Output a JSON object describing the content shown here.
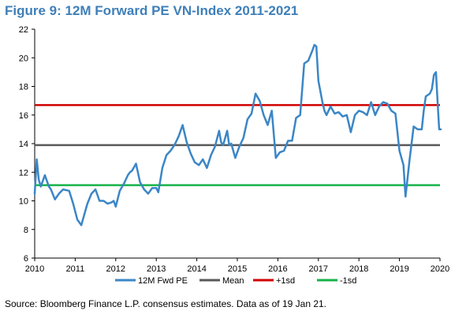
{
  "title": "Figure 9: 12M Forward PE VN-Index 2011-2021",
  "source": "Source: Bloomberg Finance L.P. consensus estimates. Data as of 19 Jan 21.",
  "colors": {
    "series": "#3b86c6",
    "mean": "#595959",
    "plus1sd": "#d00000",
    "minus1sd": "#17b24a",
    "title": "#3f7fb8"
  },
  "chart_data": {
    "type": "line",
    "title": "Figure 9: 12M Forward PE VN-Index 2011-2021",
    "xlabel": "",
    "ylabel": "",
    "xlim": [
      2010,
      2020
    ],
    "ylim": [
      6,
      22
    ],
    "x_ticks": [
      "2010",
      "2011",
      "2012",
      "2013",
      "2014",
      "2015",
      "2016",
      "2017",
      "2018",
      "2019",
      "2020"
    ],
    "y_ticks": [
      "6",
      "8",
      "10",
      "12",
      "14",
      "16",
      "18",
      "20",
      "22"
    ],
    "grid": false,
    "legend_position": "bottom",
    "series": [
      {
        "name": "12M Fwd PE",
        "x": [
          2010.0,
          2010.05,
          2010.1,
          2010.15,
          2010.25,
          2010.35,
          2010.4,
          2010.5,
          2010.6,
          2010.7,
          2010.85,
          2010.95,
          2011.05,
          2011.15,
          2011.3,
          2011.4,
          2011.5,
          2011.6,
          2011.7,
          2011.8,
          2011.9,
          2011.95,
          2012.0,
          2012.1,
          2012.2,
          2012.3,
          2012.35,
          2012.4,
          2012.5,
          2012.6,
          2012.7,
          2012.8,
          2012.9,
          2012.95,
          2013.0,
          2013.05,
          2013.15,
          2013.25,
          2013.35,
          2013.45,
          2013.55,
          2013.65,
          2013.75,
          2013.85,
          2013.95,
          2014.05,
          2014.15,
          2014.25,
          2014.35,
          2014.45,
          2014.55,
          2014.6,
          2014.65,
          2014.75,
          2014.8,
          2014.85,
          2014.95,
          2015.05,
          2015.15,
          2015.25,
          2015.35,
          2015.45,
          2015.55,
          2015.65,
          2015.75,
          2015.85,
          2015.95,
          2016.05,
          2016.15,
          2016.25,
          2016.35,
          2016.45,
          2016.55,
          2016.65,
          2016.75,
          2016.85,
          2016.9,
          2016.95,
          2017.0,
          2017.1,
          2017.15,
          2017.2,
          2017.3,
          2017.4,
          2017.5,
          2017.6,
          2017.7,
          2017.8,
          2017.9,
          2018.0,
          2018.1,
          2018.2,
          2018.3,
          2018.4,
          2018.5,
          2018.6,
          2018.7,
          2018.8,
          2018.9,
          2019.0,
          2019.05,
          2019.1,
          2019.15,
          2019.25,
          2019.35,
          2019.45,
          2019.55,
          2019.6,
          2019.65,
          2019.7,
          2019.75,
          2019.8,
          2019.85,
          2019.9,
          2019.95,
          2019.98,
          2020.02
        ],
        "values": [
          10.5,
          12.9,
          11.5,
          11.0,
          11.8,
          11.0,
          10.8,
          10.1,
          10.5,
          10.8,
          10.7,
          9.8,
          8.7,
          8.3,
          9.8,
          10.5,
          10.8,
          10.0,
          10.0,
          9.8,
          9.9,
          10.0,
          9.6,
          10.7,
          11.2,
          11.8,
          12.0,
          12.1,
          12.6,
          11.3,
          10.8,
          10.5,
          10.9,
          10.9,
          10.9,
          10.6,
          12.3,
          13.2,
          13.5,
          13.9,
          14.5,
          15.3,
          14.1,
          13.3,
          12.7,
          12.5,
          12.9,
          12.3,
          13.2,
          13.8,
          14.9,
          14.1,
          13.9,
          14.9,
          13.9,
          14.0,
          13.0,
          13.8,
          14.4,
          15.7,
          16.1,
          17.5,
          17.0,
          16.0,
          15.3,
          16.3,
          13.0,
          13.4,
          13.5,
          14.2,
          14.2,
          15.8,
          16.0,
          19.6,
          19.8,
          20.5,
          20.9,
          20.8,
          18.4,
          16.9,
          16.3,
          16.0,
          16.6,
          16.1,
          16.2,
          15.9,
          16.0,
          14.8,
          16.0,
          16.3,
          16.2,
          16.0,
          16.9,
          16.0,
          16.6,
          16.9,
          16.8,
          16.3,
          16.1,
          13.5,
          13.0,
          12.5,
          10.3,
          12.9,
          15.2,
          15.0,
          15.0,
          16.3,
          17.3,
          17.4,
          17.5,
          17.8,
          18.8,
          19.0,
          16.5,
          15.0,
          15.0
        ]
      },
      {
        "name": "Mean",
        "values": [
          13.9
        ]
      },
      {
        "name": "+1sd",
        "values": [
          16.7
        ]
      },
      {
        "name": "-1sd",
        "values": [
          11.1
        ]
      }
    ]
  }
}
